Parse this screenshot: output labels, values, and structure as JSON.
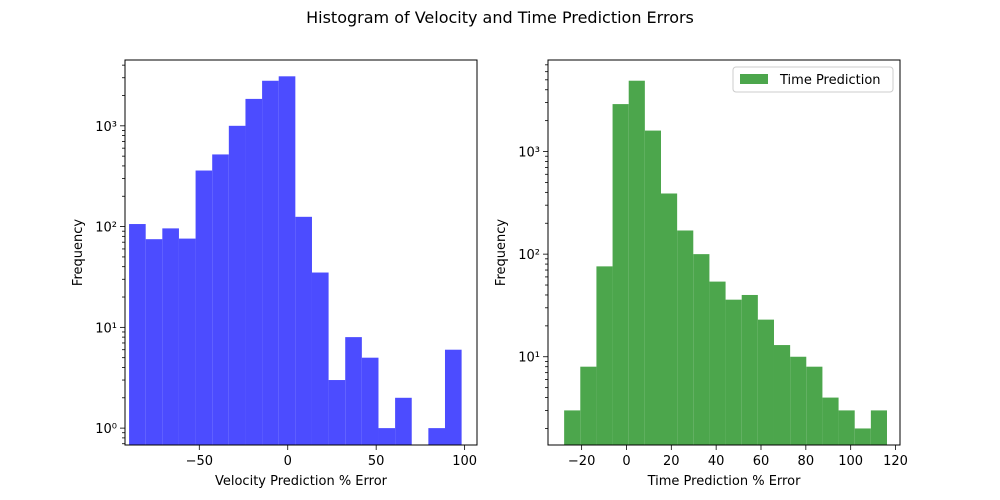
{
  "figure": {
    "title": "Histogram of Velocity and Time Prediction Errors"
  },
  "chart_data": [
    {
      "type": "bar",
      "histogram": true,
      "log_y": true,
      "color": "#4c4cff",
      "xlabel": "Velocity Prediction % Error",
      "ylabel": "Frequency",
      "xlim": [
        -92,
        107
      ],
      "ylim": [
        0.68,
        4500
      ],
      "legend": null,
      "x_ticks": [
        -50,
        0,
        50,
        100
      ],
      "x_tick_labels": [
        "−50",
        "0",
        "50",
        "100"
      ],
      "y_ticks": [
        1,
        10,
        100,
        1000
      ],
      "y_tick_labels": [
        "10⁰",
        "10¹",
        "10²",
        "10³"
      ],
      "bins": [
        {
          "x0": -89.7,
          "x1": -80.3,
          "value": 106
        },
        {
          "x0": -80.3,
          "x1": -70.9,
          "value": 75
        },
        {
          "x0": -70.9,
          "x1": -61.5,
          "value": 96
        },
        {
          "x0": -61.5,
          "x1": -52.1,
          "value": 76
        },
        {
          "x0": -52.1,
          "x1": -42.7,
          "value": 360
        },
        {
          "x0": -42.7,
          "x1": -33.3,
          "value": 520
        },
        {
          "x0": -33.3,
          "x1": -23.9,
          "value": 1000
        },
        {
          "x0": -23.9,
          "x1": -14.5,
          "value": 1850
        },
        {
          "x0": -14.5,
          "x1": -5.1,
          "value": 2800
        },
        {
          "x0": -5.1,
          "x1": 4.3,
          "value": 3100
        },
        {
          "x0": 4.3,
          "x1": 13.7,
          "value": 125
        },
        {
          "x0": 13.7,
          "x1": 23.1,
          "value": 35
        },
        {
          "x0": 23.1,
          "x1": 32.5,
          "value": 3
        },
        {
          "x0": 32.5,
          "x1": 41.9,
          "value": 8
        },
        {
          "x0": 41.9,
          "x1": 51.3,
          "value": 5
        },
        {
          "x0": 51.3,
          "x1": 60.7,
          "value": 1
        },
        {
          "x0": 60.7,
          "x1": 70.1,
          "value": 2
        },
        {
          "x0": 70.1,
          "x1": 79.5,
          "value": 0
        },
        {
          "x0": 79.5,
          "x1": 88.9,
          "value": 1
        },
        {
          "x0": 88.9,
          "x1": 98.3,
          "value": 6
        }
      ]
    },
    {
      "type": "bar",
      "histogram": true,
      "log_y": true,
      "color": "#4ca64c",
      "xlabel": "Time Prediction % Error",
      "ylabel": "Frequency",
      "xlim": [
        -35,
        122
      ],
      "ylim": [
        1.38,
        7800
      ],
      "legend": {
        "placement": "top-right",
        "label": "Time Prediction"
      },
      "x_ticks": [
        -20,
        0,
        20,
        40,
        60,
        80,
        100,
        120
      ],
      "x_tick_labels": [
        "−20",
        "0",
        "20",
        "40",
        "60",
        "80",
        "100",
        "120"
      ],
      "y_ticks": [
        10,
        100,
        1000
      ],
      "y_tick_labels": [
        "10¹",
        "10²",
        "10³"
      ],
      "bins": [
        {
          "x0": -27.8,
          "x1": -20.6,
          "value": 3
        },
        {
          "x0": -20.6,
          "x1": -13.4,
          "value": 8
        },
        {
          "x0": -13.4,
          "x1": -6.2,
          "value": 76
        },
        {
          "x0": -6.2,
          "x1": 1.0,
          "value": 2900
        },
        {
          "x0": 1.0,
          "x1": 8.2,
          "value": 4900
        },
        {
          "x0": 8.2,
          "x1": 15.4,
          "value": 1600
        },
        {
          "x0": 15.4,
          "x1": 22.6,
          "value": 390
        },
        {
          "x0": 22.6,
          "x1": 29.8,
          "value": 170
        },
        {
          "x0": 29.8,
          "x1": 37.0,
          "value": 100
        },
        {
          "x0": 37.0,
          "x1": 44.2,
          "value": 54
        },
        {
          "x0": 44.2,
          "x1": 51.4,
          "value": 36
        },
        {
          "x0": 51.4,
          "x1": 58.6,
          "value": 40
        },
        {
          "x0": 58.6,
          "x1": 65.8,
          "value": 23
        },
        {
          "x0": 65.8,
          "x1": 73.0,
          "value": 13
        },
        {
          "x0": 73.0,
          "x1": 80.2,
          "value": 10
        },
        {
          "x0": 80.2,
          "x1": 87.4,
          "value": 8
        },
        {
          "x0": 87.4,
          "x1": 94.6,
          "value": 4
        },
        {
          "x0": 94.6,
          "x1": 101.8,
          "value": 3
        },
        {
          "x0": 101.8,
          "x1": 109.0,
          "value": 2
        },
        {
          "x0": 109.0,
          "x1": 116.2,
          "value": 3
        }
      ]
    }
  ]
}
